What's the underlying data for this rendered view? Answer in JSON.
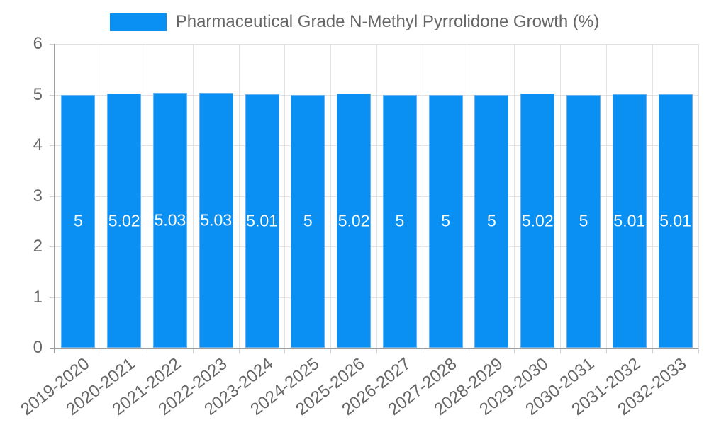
{
  "chart_data": {
    "type": "bar",
    "title": "Pharmaceutical Grade N-Methyl Pyrrolidone Growth (%)",
    "legend_position": "top",
    "categories": [
      "2019-2020",
      "2020-2021",
      "2021-2022",
      "2022-2023",
      "2023-2024",
      "2024-2025",
      "2025-2026",
      "2026-2027",
      "2027-2028",
      "2028-2029",
      "2029-2030",
      "2030-2031",
      "2031-2032",
      "2032-2033"
    ],
    "series": [
      {
        "name": "Pharmaceutical Grade N-Methyl Pyrrolidone Growth (%)",
        "values": [
          5,
          5.02,
          5.03,
          5.03,
          5.01,
          5,
          5.02,
          5,
          5,
          5,
          5.02,
          5,
          5.01,
          5.01
        ],
        "labels": [
          "5",
          "5.02",
          "5.03",
          "5.03",
          "5.01",
          "5",
          "5.02",
          "5",
          "5",
          "5",
          "5.02",
          "5",
          "5.01",
          "5.01"
        ]
      }
    ],
    "xlabel": "",
    "ylabel": "",
    "ylim": [
      0,
      6
    ],
    "yticks": [
      "0",
      "1",
      "2",
      "3",
      "4",
      "5",
      "6"
    ],
    "grid": true,
    "colors": {
      "bar": "#0990f2",
      "bar_border": "#66b4f5",
      "grid": "#e3e3e3",
      "tick": "#cfcfcf",
      "axis": "#9e9e9e",
      "text": "#666666",
      "bar_label": "#ffffff",
      "background": "#ffffff"
    }
  }
}
